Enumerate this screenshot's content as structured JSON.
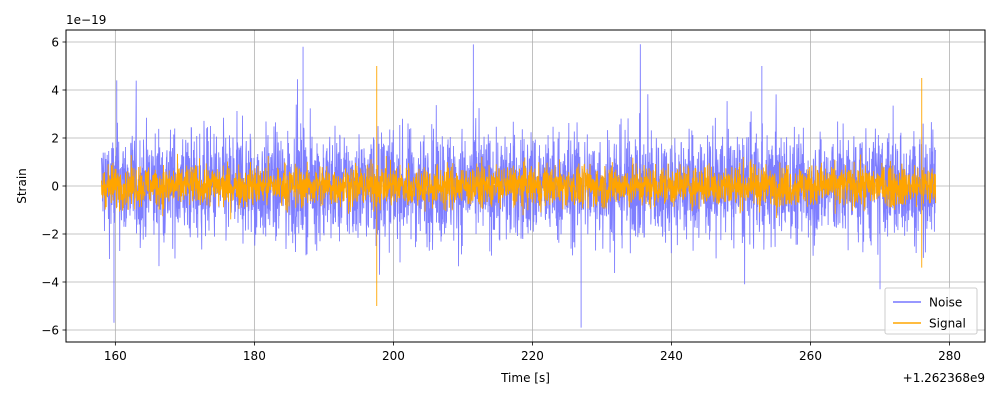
{
  "chart_data": {
    "type": "line",
    "xlabel": "Time [s]",
    "ylabel": "Strain",
    "x_offset_label": "+1.262368e9",
    "y_scale_label": "1e−19",
    "xlim": [
      152.9,
      285.1
    ],
    "ylim": [
      -6.5,
      6.5
    ],
    "x_ticks": [
      160,
      180,
      200,
      220,
      240,
      260,
      280
    ],
    "y_ticks": [
      -6,
      -4,
      -2,
      0,
      2,
      4,
      6
    ],
    "grid": true,
    "legend_position": "lower-right",
    "x_range": [
      158.0,
      278.0
    ],
    "series": [
      {
        "name": "Noise",
        "color": "#7777ff",
        "typical_amplitude": 2.1,
        "peaks": [
          {
            "x": 159.8,
            "y": -5.7
          },
          {
            "x": 160.2,
            "y": 4.4
          },
          {
            "x": 187.0,
            "y": 5.8
          },
          {
            "x": 197.5,
            "y": -2.5
          },
          {
            "x": 211.5,
            "y": 5.9
          },
          {
            "x": 227.0,
            "y": -5.9
          },
          {
            "x": 253.0,
            "y": 5.0
          },
          {
            "x": 270.0,
            "y": -4.3
          }
        ]
      },
      {
        "name": "Signal",
        "color": "#ffa500",
        "typical_amplitude": 0.8,
        "peaks": [
          {
            "x": 197.6,
            "y": 5.0
          },
          {
            "x": 197.6,
            "y": -5.0
          },
          {
            "x": 276.0,
            "y": 4.5
          },
          {
            "x": 276.0,
            "y": -3.4
          }
        ]
      }
    ]
  }
}
